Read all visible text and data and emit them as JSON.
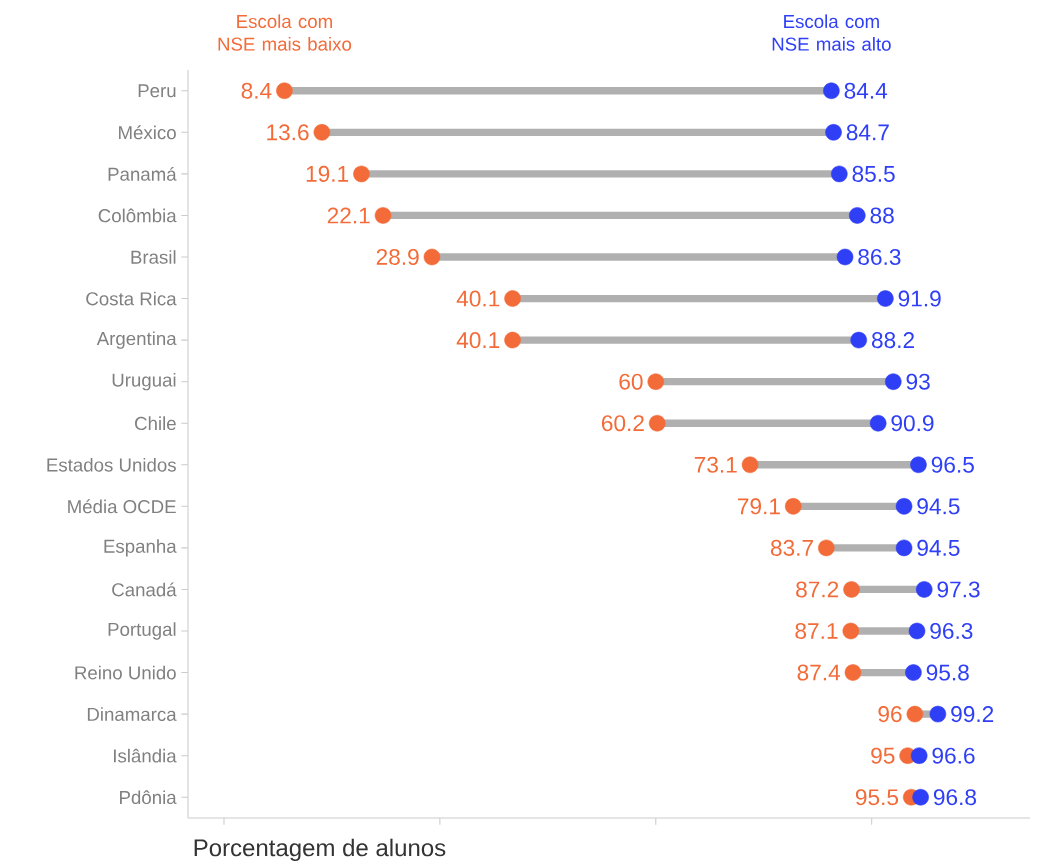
{
  "chart_data": {
    "type": "scatter",
    "orientation": "horizontal",
    "xlabel": "Porcentagem de alunos",
    "categories": [
      "Peru",
      "México",
      "Panamá",
      "Colômbia",
      "Brasil",
      "Costa Rica",
      "Argentina",
      "Uruguai",
      "Chile",
      "Estados Unidos",
      "Média OCDE",
      "Espanha",
      "Canadá",
      "Portugal",
      "Reino Unido",
      "Dinamarca",
      "Islândia",
      "Pdônia"
    ],
    "series": [
      {
        "name": "Escola com NSE mais baixo",
        "color": "#f26b38",
        "values": [
          8.4,
          13.6,
          19.1,
          22.1,
          28.9,
          40.1,
          40.1,
          60,
          60.2,
          73.1,
          79.1,
          83.7,
          87.2,
          87.1,
          87.4,
          96,
          95,
          95.5
        ]
      },
      {
        "name": "Escola com NSE mais alto",
        "color": "#2f3ff5",
        "values": [
          84.4,
          84.7,
          85.5,
          88,
          86.3,
          91.9,
          88.2,
          93,
          90.9,
          96.5,
          94.5,
          94.5,
          97.3,
          96.3,
          95.8,
          99.2,
          96.6,
          96.8
        ]
      }
    ],
    "xlim": [
      -5,
      112
    ],
    "xticks": [
      {
        "value": 0,
        "label": null
      },
      {
        "value": 30,
        "label": null
      },
      {
        "value": 60,
        "label": null
      },
      {
        "value": 90,
        "label": null
      }
    ],
    "tick_labels": "y",
    "data_labels": true
  }
}
